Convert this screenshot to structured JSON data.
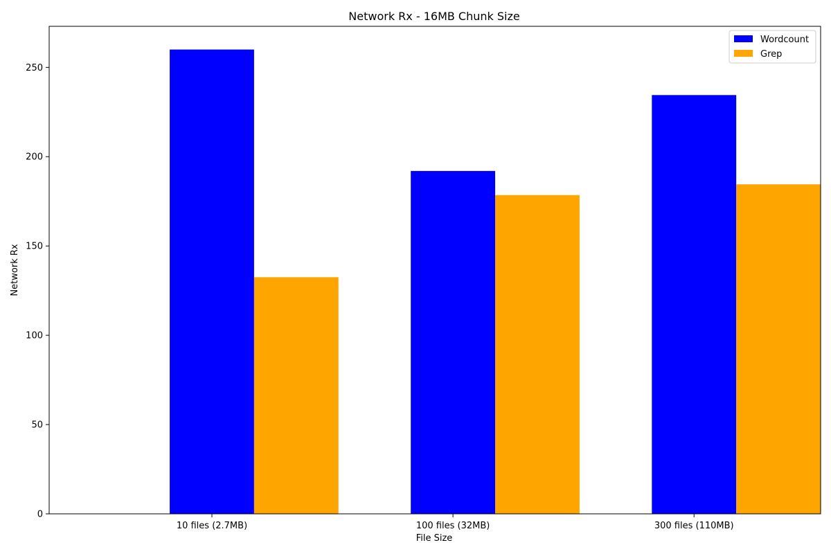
{
  "chart_data": {
    "type": "bar",
    "title": "Network Rx - 16MB Chunk Size",
    "xlabel": "File Size",
    "ylabel": "Network Rx",
    "categories": [
      "10 files (2.7MB)",
      "100 files (32MB)",
      "300 files (110MB)"
    ],
    "series": [
      {
        "name": "Wordcount",
        "color": "#0000ff",
        "values": [
          260,
          192,
          234.5
        ]
      },
      {
        "name": "Grep",
        "color": "#ffa500",
        "values": [
          132.5,
          178.5,
          184.5
        ]
      }
    ],
    "ylim": [
      0,
      273
    ],
    "yticks": [
      0,
      50,
      100,
      150,
      200,
      250
    ],
    "grid": false,
    "legend": "top-right"
  }
}
